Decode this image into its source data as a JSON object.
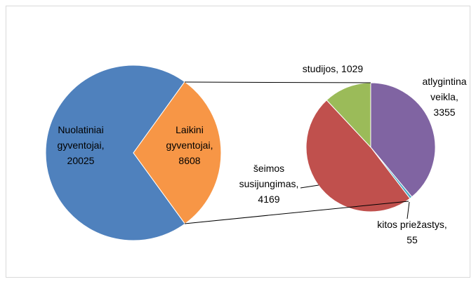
{
  "chart_data": [
    {
      "type": "pie",
      "values": [
        20025,
        8608
      ],
      "value_labels": [
        "Nuolatiniai gyventojai, 20025",
        "Laikini gyventojai, 8608"
      ],
      "colors": [
        "#4f81bd",
        "#f79646"
      ]
    },
    {
      "type": "pie",
      "values": [
        3355,
        55,
        4169,
        1029
      ],
      "value_labels": [
        "atlygintina veikla, 3355",
        "kitos priežastys, 55",
        "šeimos susijungimas, 4169",
        "studijos, 1029"
      ],
      "colors": [
        "#8064a2",
        "#4bacc6",
        "#c0504d",
        "#9bbb59"
      ]
    }
  ]
}
